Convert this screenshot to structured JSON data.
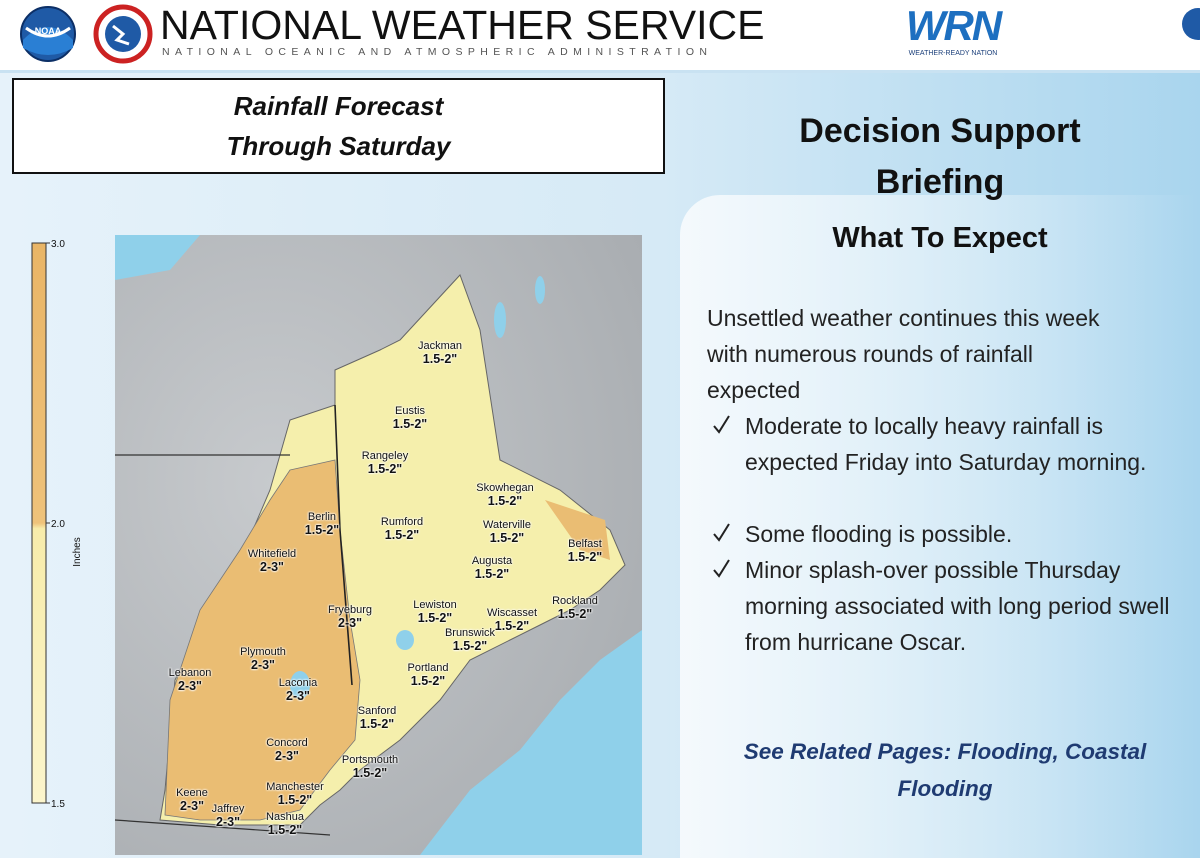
{
  "header": {
    "org": "NATIONAL WEATHER SERVICE",
    "suborg": "NATIONAL OCEANIC AND ATMOSPHERIC ADMINISTRATION",
    "noaa_logo": "NOAA",
    "wrn_logo": "WRN",
    "wrn_tagline": "WEATHER-READY NATION"
  },
  "forecast_box": {
    "title_lines": [
      "Rainfall Forecast",
      "Through Saturday"
    ]
  },
  "colorbar": {
    "label": "Inches",
    "ticks": [
      "3.0",
      "2.0",
      "1.5"
    ]
  },
  "places": [
    {
      "name": "Jackman",
      "amount": "1.5-2\""
    },
    {
      "name": "Eustis",
      "amount": "1.5-2\""
    },
    {
      "name": "Rangeley",
      "amount": "1.5-2\""
    },
    {
      "name": "Skowhegan",
      "amount": "1.5-2\""
    },
    {
      "name": "Berlin",
      "amount": "1.5-2\""
    },
    {
      "name": "Rumford",
      "amount": "1.5-2\""
    },
    {
      "name": "Waterville",
      "amount": "1.5-2\""
    },
    {
      "name": "Belfast",
      "amount": "1.5-2\""
    },
    {
      "name": "Whitefield",
      "amount": "2-3\""
    },
    {
      "name": "Augusta",
      "amount": "1.5-2\""
    },
    {
      "name": "Fryeburg",
      "amount": "2-3\""
    },
    {
      "name": "Lewiston",
      "amount": "1.5-2\""
    },
    {
      "name": "Wiscasset",
      "amount": "1.5-2\""
    },
    {
      "name": "Rockland",
      "amount": "1.5-2\""
    },
    {
      "name": "Brunswick",
      "amount": "1.5-2\""
    },
    {
      "name": "Plymouth",
      "amount": "2-3\""
    },
    {
      "name": "Lebanon",
      "amount": "2-3\""
    },
    {
      "name": "Laconia",
      "amount": "2-3\""
    },
    {
      "name": "Portland",
      "amount": "1.5-2\""
    },
    {
      "name": "Sanford",
      "amount": "1.5-2\""
    },
    {
      "name": "Concord",
      "amount": "2-3\""
    },
    {
      "name": "Portsmouth",
      "amount": "1.5-2\""
    },
    {
      "name": "Keene",
      "amount": "2-3\""
    },
    {
      "name": "Manchester",
      "amount": "1.5-2\""
    },
    {
      "name": "Jaffrey",
      "amount": "2-3\""
    },
    {
      "name": "Nashua",
      "amount": "1.5-2\""
    }
  ],
  "briefing": {
    "title_lines": [
      "Decision Support",
      "Briefing"
    ],
    "subtitle": "What To Expect",
    "intro": "Unsettled weather continues this week with numerous rounds of rainfall expected",
    "bullets": [
      "Moderate to locally heavy rainfall is expected Friday into Saturday morning.",
      "Some flooding is possible.",
      "Minor splash-over possible Thursday morning associated with long period swell from hurricane Oscar."
    ],
    "related": "See Related Pages:  Flooding, Coastal Flooding"
  }
}
